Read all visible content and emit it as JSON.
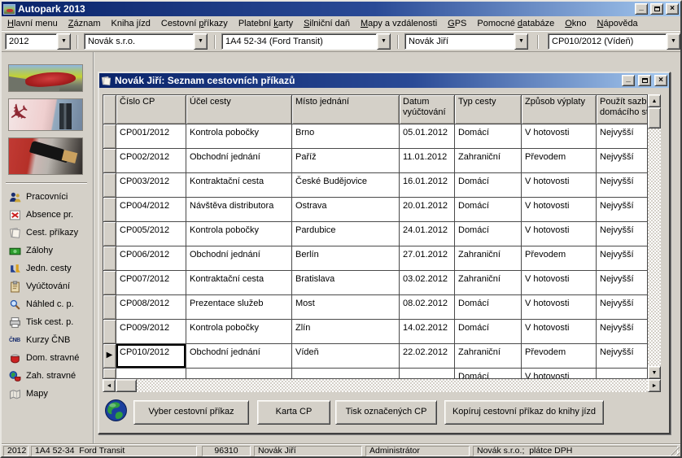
{
  "app": {
    "title": "Autopark 2013"
  },
  "icons": {
    "minimize": "_",
    "close": "×",
    "combo_arrow": "▼",
    "scroll_up": "▲",
    "scroll_down": "▼",
    "scroll_left": "◄",
    "scroll_right": "►",
    "row_marker": "▶"
  },
  "menu": {
    "items": [
      {
        "pre": "",
        "u": "H",
        "post": "lavní menu"
      },
      {
        "pre": "",
        "u": "Z",
        "post": "áznam"
      },
      {
        "pre": "Kniha ",
        "u": "j",
        "post": "ízd"
      },
      {
        "pre": "Cestovní ",
        "u": "p",
        "post": "říkazy"
      },
      {
        "pre": "Platební ",
        "u": "k",
        "post": "arty"
      },
      {
        "pre": "",
        "u": "S",
        "post": "ilniční daň"
      },
      {
        "pre": "",
        "u": "M",
        "post": "apy a vzdálenosti"
      },
      {
        "pre": "",
        "u": "G",
        "post": "PS"
      },
      {
        "pre": "Pomocné ",
        "u": "d",
        "post": "atabáze"
      },
      {
        "pre": "",
        "u": "O",
        "post": "kno"
      },
      {
        "pre": "",
        "u": "N",
        "post": "ápověda"
      }
    ]
  },
  "combos": [
    {
      "value": "2012"
    },
    {
      "value": "Novák s.r.o."
    },
    {
      "value": "1A4 52-34 (Ford Transit)"
    },
    {
      "value": "Novák Jiří"
    },
    {
      "value": "CP010/2012 (Vídeň)"
    }
  ],
  "sidebar": {
    "items": [
      {
        "label": "Pracovníci",
        "icon": "people-icon"
      },
      {
        "label": "Absence pr.",
        "icon": "absence-icon"
      },
      {
        "label": "Cest. příkazy",
        "icon": "travel-orders-icon"
      },
      {
        "label": "Zálohy",
        "icon": "money-icon"
      },
      {
        "label": "Jedn. cesty",
        "icon": "single-trips-icon"
      },
      {
        "label": "Vyúčtování",
        "icon": "clipboard-icon"
      },
      {
        "label": "Náhled c. p.",
        "icon": "magnifier-icon"
      },
      {
        "label": "Tisk cest. p.",
        "icon": "printer-icon"
      },
      {
        "label": "Kurzy ČNB",
        "icon": "cnb-text-icon",
        "icon_text": "ČNB"
      },
      {
        "label": "Dom. stravné",
        "icon": "bowl-icon"
      },
      {
        "label": "Zah. stravné",
        "icon": "globe-bowl-icon"
      },
      {
        "label": "Mapy",
        "icon": "map-icon"
      }
    ]
  },
  "child_window": {
    "title": "Novák Jiří: Seznam cestovních příkazů",
    "table": {
      "columns": [
        "Číslo CP",
        "Účel cesty",
        "Místo jednání",
        "Datum vyúčtování",
        "Typ cesty",
        "Způsob výplaty",
        "Použít sazbu domácího stravné"
      ],
      "rows": [
        [
          "CP001/2012",
          "Kontrola pobočky",
          "Brno",
          "05.01.2012",
          "Domácí",
          "V hotovosti",
          "Nejvyšší"
        ],
        [
          "CP002/2012",
          "Obchodní jednání",
          "Paříž",
          "11.01.2012",
          "Zahraniční",
          "Převodem",
          "Nejvyšší"
        ],
        [
          "CP003/2012",
          "Kontraktační cesta",
          "České Budějovice",
          "16.01.2012",
          "Domácí",
          "V hotovosti",
          "Nejvyšší"
        ],
        [
          "CP004/2012",
          "Návštěva distributora",
          "Ostrava",
          "20.01.2012",
          "Domácí",
          "V hotovosti",
          "Nejvyšší"
        ],
        [
          "CP005/2012",
          "Kontrola pobočky",
          "Pardubice",
          "24.01.2012",
          "Domácí",
          "V hotovosti",
          "Nejvyšší"
        ],
        [
          "CP006/2012",
          "Obchodní jednání",
          "Berlín",
          "27.01.2012",
          "Zahraniční",
          "Převodem",
          "Nejvyšší"
        ],
        [
          "CP007/2012",
          "Kontraktační cesta",
          "Bratislava",
          "03.02.2012",
          "Zahraniční",
          "V hotovosti",
          "Nejvyšší"
        ],
        [
          "CP008/2012",
          "Prezentace služeb",
          "Most",
          "08.02.2012",
          "Domácí",
          "V hotovosti",
          "Nejvyšší"
        ],
        [
          "CP009/2012",
          "Kontrola pobočky",
          "Zlín",
          "14.02.2012",
          "Domácí",
          "V hotovosti",
          "Nejvyšší"
        ],
        [
          "CP010/2012",
          "Obchodní jednání",
          "Vídeň",
          "22.02.2012",
          "Zahraniční",
          "Převodem",
          "Nejvyšší"
        ]
      ],
      "selected_row_index": 9,
      "partial_row": {
        "typ_cesty": "Domácí",
        "zpusob_vyplaty": "V hotovosti"
      }
    },
    "buttons": [
      {
        "label": "Vyber cestovní příkaz"
      },
      {
        "label": "Karta CP"
      },
      {
        "label": "Tisk označených CP"
      },
      {
        "label": "Kopíruj cestovní příkaz do knihy jízd"
      }
    ]
  },
  "statusbar": {
    "year": "2012",
    "vehicle": "1A4 52-34  Ford Transit",
    "code": "96310",
    "person": "Novák Jiří",
    "role": "Administrátor",
    "company": "Novák s.r.o.;  plátce DPH"
  },
  "colors": {
    "titlebar_dark": "#0a246a",
    "titlebar_light": "#a6caf0",
    "chrome": "#d4d0c8",
    "grid_line": "#4a4a4a",
    "focus_border": "#000000"
  }
}
